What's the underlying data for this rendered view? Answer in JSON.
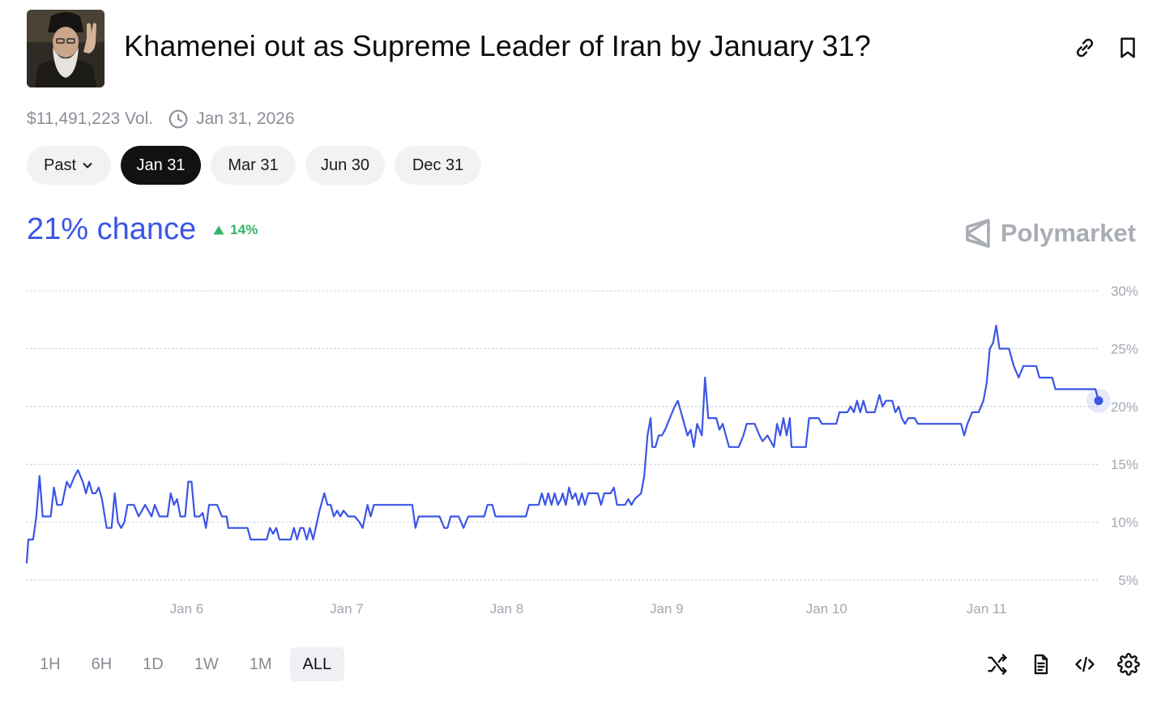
{
  "market": {
    "title": "Khamenei out as Supreme Leader of Iran by January 31?",
    "volume": "$11,491,223 Vol.",
    "end_date": "Jan 31, 2026"
  },
  "header_icons": [
    "link-icon",
    "bookmark-icon"
  ],
  "date_tabs": [
    {
      "label": "Past",
      "active": false,
      "dropdown": true
    },
    {
      "label": "Jan 31",
      "active": true
    },
    {
      "label": "Mar 31",
      "active": false
    },
    {
      "label": "Jun 30",
      "active": false
    },
    {
      "label": "Dec 31",
      "active": false
    }
  ],
  "chance": {
    "value": "21% chance",
    "delta": "14%",
    "delta_direction": "up"
  },
  "brand": "Polymarket",
  "colors": {
    "accent": "#3b55e6",
    "positive": "#36b36a",
    "active_tab": "#111213"
  },
  "time_ranges": [
    {
      "label": "1H",
      "active": false
    },
    {
      "label": "6H",
      "active": false
    },
    {
      "label": "1D",
      "active": false
    },
    {
      "label": "1W",
      "active": false
    },
    {
      "label": "1M",
      "active": false
    },
    {
      "label": "ALL",
      "active": true
    }
  ],
  "tool_icons": [
    "shuffle-icon",
    "document-icon",
    "embed-code-icon",
    "settings-gear-icon"
  ],
  "chart_data": {
    "type": "line",
    "y_ticks": [
      "30%",
      "25%",
      "20%",
      "15%",
      "10%",
      "5%"
    ],
    "x_ticks": [
      "Jan 6",
      "Jan 7",
      "Jan 8",
      "Jan 9",
      "Jan 10",
      "Jan 11"
    ],
    "x_tick_values": [
      6,
      7,
      8,
      9,
      10,
      11
    ],
    "ylim": [
      5,
      30
    ],
    "xlim": [
      5.0,
      11.7
    ],
    "grid": "dotted horizontal",
    "series": [
      {
        "values": [
          [
            5.0,
            6.5
          ],
          [
            5.01,
            8.5
          ],
          [
            5.04,
            8.5
          ],
          [
            5.06,
            10.5
          ],
          [
            5.08,
            14.0
          ],
          [
            5.1,
            10.5
          ],
          [
            5.15,
            10.5
          ],
          [
            5.17,
            13.0
          ],
          [
            5.19,
            11.5
          ],
          [
            5.22,
            11.5
          ],
          [
            5.25,
            13.5
          ],
          [
            5.27,
            13.0
          ],
          [
            5.3,
            14.0
          ],
          [
            5.32,
            14.5
          ],
          [
            5.35,
            13.5
          ],
          [
            5.37,
            12.5
          ],
          [
            5.39,
            13.5
          ],
          [
            5.41,
            12.5
          ],
          [
            5.43,
            12.5
          ],
          [
            5.45,
            13.0
          ],
          [
            5.47,
            12.0
          ],
          [
            5.5,
            9.5
          ],
          [
            5.53,
            9.5
          ],
          [
            5.55,
            12.5
          ],
          [
            5.57,
            10.0
          ],
          [
            5.59,
            9.5
          ],
          [
            5.61,
            10.0
          ],
          [
            5.63,
            11.5
          ],
          [
            5.67,
            11.5
          ],
          [
            5.7,
            10.5
          ],
          [
            5.72,
            11.0
          ],
          [
            5.74,
            11.5
          ],
          [
            5.76,
            11.0
          ],
          [
            5.78,
            10.5
          ],
          [
            5.8,
            11.5
          ],
          [
            5.83,
            10.5
          ],
          [
            5.85,
            10.5
          ],
          [
            5.88,
            10.5
          ],
          [
            5.9,
            12.5
          ],
          [
            5.92,
            11.5
          ],
          [
            5.94,
            12.0
          ],
          [
            5.96,
            10.5
          ],
          [
            5.99,
            10.5
          ],
          [
            6.01,
            13.5
          ],
          [
            6.03,
            13.5
          ],
          [
            6.05,
            10.5
          ],
          [
            6.08,
            10.5
          ],
          [
            6.1,
            10.8
          ],
          [
            6.12,
            9.5
          ],
          [
            6.14,
            11.5
          ],
          [
            6.19,
            11.5
          ],
          [
            6.22,
            10.5
          ],
          [
            6.25,
            10.5
          ],
          [
            6.26,
            9.5
          ],
          [
            6.38,
            9.5
          ],
          [
            6.4,
            8.5
          ],
          [
            6.5,
            8.5
          ],
          [
            6.52,
            9.5
          ],
          [
            6.54,
            9.0
          ],
          [
            6.56,
            9.5
          ],
          [
            6.58,
            8.5
          ],
          [
            6.65,
            8.5
          ],
          [
            6.67,
            9.5
          ],
          [
            6.69,
            8.5
          ],
          [
            6.71,
            9.5
          ],
          [
            6.73,
            9.5
          ],
          [
            6.75,
            8.5
          ],
          [
            6.77,
            9.5
          ],
          [
            6.79,
            8.5
          ],
          [
            6.83,
            11.0
          ],
          [
            6.86,
            12.5
          ],
          [
            6.88,
            11.5
          ],
          [
            6.9,
            11.5
          ],
          [
            6.92,
            10.5
          ],
          [
            6.94,
            11.0
          ],
          [
            6.96,
            10.5
          ],
          [
            6.98,
            11.0
          ],
          [
            7.01,
            10.5
          ],
          [
            7.05,
            10.5
          ],
          [
            7.08,
            10.0
          ],
          [
            7.1,
            9.5
          ],
          [
            7.13,
            11.5
          ],
          [
            7.15,
            10.5
          ],
          [
            7.17,
            11.5
          ],
          [
            7.41,
            11.5
          ],
          [
            7.43,
            9.5
          ],
          [
            7.45,
            10.5
          ],
          [
            7.58,
            10.5
          ],
          [
            7.61,
            9.5
          ],
          [
            7.63,
            9.5
          ],
          [
            7.65,
            10.5
          ],
          [
            7.7,
            10.5
          ],
          [
            7.73,
            9.5
          ],
          [
            7.76,
            10.5
          ],
          [
            7.86,
            10.5
          ],
          [
            7.88,
            11.5
          ],
          [
            7.91,
            11.5
          ],
          [
            7.93,
            10.5
          ],
          [
            8.12,
            10.5
          ],
          [
            8.14,
            11.5
          ],
          [
            8.2,
            11.5
          ],
          [
            8.22,
            12.5
          ],
          [
            8.24,
            11.5
          ],
          [
            8.26,
            12.5
          ],
          [
            8.28,
            11.5
          ],
          [
            8.3,
            12.5
          ],
          [
            8.32,
            11.5
          ],
          [
            8.34,
            12.0
          ],
          [
            8.35,
            12.5
          ],
          [
            8.37,
            11.5
          ],
          [
            8.39,
            13.0
          ],
          [
            8.41,
            12.0
          ],
          [
            8.43,
            12.5
          ],
          [
            8.45,
            11.5
          ],
          [
            8.47,
            12.5
          ],
          [
            8.49,
            11.5
          ],
          [
            8.51,
            12.5
          ],
          [
            8.57,
            12.5
          ],
          [
            8.59,
            11.5
          ],
          [
            8.61,
            12.5
          ],
          [
            8.65,
            12.5
          ],
          [
            8.67,
            13.0
          ],
          [
            8.69,
            11.5
          ],
          [
            8.74,
            11.5
          ],
          [
            8.76,
            12.0
          ],
          [
            8.78,
            11.5
          ],
          [
            8.8,
            12.0
          ],
          [
            8.84,
            12.5
          ],
          [
            8.86,
            14.0
          ],
          [
            8.88,
            17.5
          ],
          [
            8.9,
            19.0
          ],
          [
            8.91,
            16.5
          ],
          [
            8.93,
            16.5
          ],
          [
            8.95,
            17.5
          ],
          [
            8.97,
            17.5
          ],
          [
            8.99,
            18.0
          ],
          [
            9.02,
            19.0
          ],
          [
            9.05,
            20.0
          ],
          [
            9.07,
            20.5
          ],
          [
            9.1,
            19.0
          ],
          [
            9.13,
            17.5
          ],
          [
            9.15,
            18.0
          ],
          [
            9.17,
            16.5
          ],
          [
            9.19,
            18.5
          ],
          [
            9.22,
            17.5
          ],
          [
            9.24,
            22.5
          ],
          [
            9.26,
            19.0
          ],
          [
            9.31,
            19.0
          ],
          [
            9.33,
            18.0
          ],
          [
            9.35,
            18.5
          ],
          [
            9.37,
            17.5
          ],
          [
            9.39,
            16.5
          ],
          [
            9.45,
            16.5
          ],
          [
            9.48,
            17.5
          ],
          [
            9.5,
            18.5
          ],
          [
            9.55,
            18.5
          ],
          [
            9.58,
            17.5
          ],
          [
            9.6,
            17.0
          ],
          [
            9.63,
            17.5
          ],
          [
            9.65,
            17.0
          ],
          [
            9.67,
            16.5
          ],
          [
            9.69,
            18.5
          ],
          [
            9.71,
            17.5
          ],
          [
            9.73,
            19.0
          ],
          [
            9.75,
            17.5
          ],
          [
            9.77,
            19.0
          ],
          [
            9.78,
            16.5
          ],
          [
            9.87,
            16.5
          ],
          [
            9.89,
            19.0
          ],
          [
            9.95,
            19.0
          ],
          [
            9.97,
            18.5
          ],
          [
            10.06,
            18.5
          ],
          [
            10.08,
            19.5
          ],
          [
            10.13,
            19.5
          ],
          [
            10.15,
            20.0
          ],
          [
            10.17,
            19.5
          ],
          [
            10.19,
            20.5
          ],
          [
            10.21,
            19.5
          ],
          [
            10.23,
            20.5
          ],
          [
            10.25,
            19.5
          ],
          [
            10.3,
            19.5
          ],
          [
            10.33,
            21.0
          ],
          [
            10.35,
            20.0
          ],
          [
            10.37,
            20.5
          ],
          [
            10.41,
            20.5
          ],
          [
            10.43,
            19.5
          ],
          [
            10.45,
            20.0
          ],
          [
            10.47,
            19.0
          ],
          [
            10.49,
            18.5
          ],
          [
            10.51,
            19.0
          ],
          [
            10.55,
            19.0
          ],
          [
            10.57,
            18.5
          ],
          [
            10.84,
            18.5
          ],
          [
            10.86,
            17.5
          ],
          [
            10.88,
            18.5
          ],
          [
            10.91,
            19.5
          ],
          [
            10.95,
            19.5
          ],
          [
            10.98,
            20.5
          ],
          [
            11.0,
            22.0
          ],
          [
            11.02,
            25.0
          ],
          [
            11.04,
            25.5
          ],
          [
            11.06,
            27.0
          ],
          [
            11.08,
            25.0
          ],
          [
            11.14,
            25.0
          ],
          [
            11.17,
            23.5
          ],
          [
            11.2,
            22.5
          ],
          [
            11.23,
            23.5
          ],
          [
            11.31,
            23.5
          ],
          [
            11.33,
            22.5
          ],
          [
            11.41,
            22.5
          ],
          [
            11.43,
            21.5
          ],
          [
            11.68,
            21.5
          ],
          [
            11.7,
            20.5
          ]
        ]
      }
    ]
  }
}
